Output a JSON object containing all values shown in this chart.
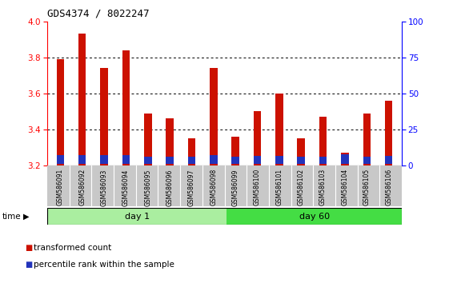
{
  "title": "GDS4374 / 8022247",
  "samples": [
    "GSM586091",
    "GSM586092",
    "GSM586093",
    "GSM586094",
    "GSM586095",
    "GSM586096",
    "GSM586097",
    "GSM586098",
    "GSM586099",
    "GSM586100",
    "GSM586101",
    "GSM586102",
    "GSM586103",
    "GSM586104",
    "GSM586105",
    "GSM586106"
  ],
  "red_values": [
    3.79,
    3.93,
    3.74,
    3.84,
    3.49,
    3.46,
    3.35,
    3.74,
    3.36,
    3.5,
    3.6,
    3.35,
    3.47,
    3.27,
    3.49,
    3.56
  ],
  "blue_values": [
    0.048,
    0.048,
    0.048,
    0.048,
    0.042,
    0.042,
    0.042,
    0.048,
    0.042,
    0.045,
    0.045,
    0.042,
    0.042,
    0.055,
    0.042,
    0.045
  ],
  "base": 3.2,
  "ylim_left": [
    3.2,
    4.0
  ],
  "ylim_right": [
    0,
    100
  ],
  "yticks_left": [
    3.2,
    3.4,
    3.6,
    3.8,
    4.0
  ],
  "yticks_right": [
    0,
    25,
    50,
    75,
    100
  ],
  "day1_label": "day 1",
  "day60_label": "day 60",
  "time_label": "time",
  "legend1": "transformed count",
  "legend2": "percentile rank within the sample",
  "bar_color_red": "#cc1100",
  "bar_color_blue": "#2233bb",
  "day1_color": "#aaeea0",
  "day60_color": "#44dd44",
  "bar_width": 0.35,
  "background_color": "#ffffff",
  "tick_label_area_color": "#c8c8c8",
  "grid_dotted_color": "#333333"
}
